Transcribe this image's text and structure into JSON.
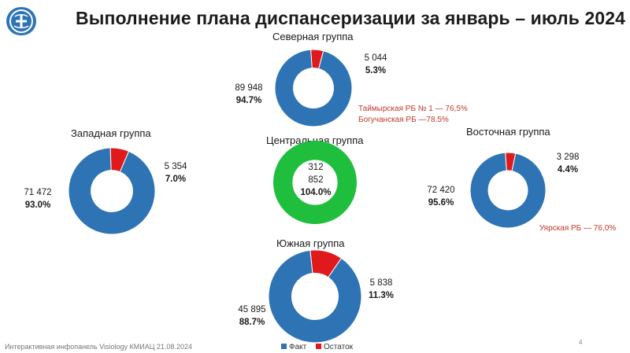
{
  "page": {
    "title": "Выполнение плана диспансеризации за январь – июль 2024",
    "footer": "Интерактивная инфопанель Visiology КМИАЦ 21.08.2024",
    "page_number": "4"
  },
  "colors": {
    "fact": "#2e74b5",
    "remainder": "#e0191d",
    "over_plan": "#1fbe3c"
  },
  "legend": [
    {
      "label": "Факт",
      "color": "#2e74b5"
    },
    {
      "label": "Остаток",
      "color": "#e0191d"
    }
  ],
  "chart_data": [
    {
      "type": "pie",
      "title": "Северная группа",
      "legend_placement": "bottom",
      "slices": [
        {
          "name": "Факт",
          "value": 89948,
          "percent": 94.7
        },
        {
          "name": "Остаток",
          "value": 5044,
          "percent": 5.3
        }
      ],
      "labels": {
        "fact_value": "89 948",
        "fact_pct": "94.7%",
        "rem_value": "5 044",
        "rem_pct": "5.3%"
      },
      "notes": [
        "Таймырская РБ № 1 — 76,5%",
        "Богучанская РБ —78.5%"
      ]
    },
    {
      "type": "pie",
      "title": "Западная группа",
      "slices": [
        {
          "name": "Факт",
          "value": 71472,
          "percent": 93.0
        },
        {
          "name": "Остаток",
          "value": 5354,
          "percent": 7.0
        }
      ],
      "labels": {
        "fact_value": "71 472",
        "fact_pct": "93.0%",
        "rem_value": "5 354",
        "rem_pct": "7.0%"
      },
      "notes": []
    },
    {
      "type": "pie",
      "title": "Центральная группа",
      "slices": [
        {
          "name": "Факт",
          "value": 312852,
          "percent": 104.0
        }
      ],
      "labels": {
        "fact_value_1": "312",
        "fact_value_2": "852",
        "fact_pct": "104.0%"
      },
      "notes": []
    },
    {
      "type": "pie",
      "title": "Восточная группа",
      "slices": [
        {
          "name": "Факт",
          "value": 72420,
          "percent": 95.6
        },
        {
          "name": "Остаток",
          "value": 3298,
          "percent": 4.4
        }
      ],
      "labels": {
        "fact_value": "72 420",
        "fact_pct": "95.6%",
        "rem_value": "3 298",
        "rem_pct": "4.4%"
      },
      "notes": [
        "Уярская РБ — 76,0%"
      ]
    },
    {
      "type": "pie",
      "title": "Южная группа",
      "slices": [
        {
          "name": "Факт",
          "value": 45895,
          "percent": 88.7
        },
        {
          "name": "Остаток",
          "value": 5838,
          "percent": 11.3
        }
      ],
      "labels": {
        "fact_value": "45 895",
        "fact_pct": "88.7%",
        "rem_value": "5 838",
        "rem_pct": "11.3%"
      },
      "notes": []
    }
  ]
}
